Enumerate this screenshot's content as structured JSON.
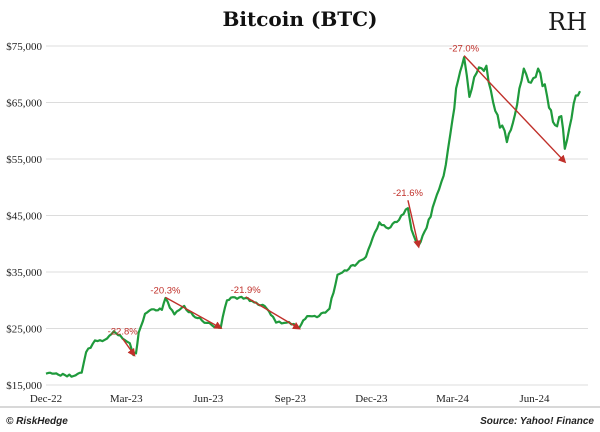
{
  "footer": {
    "left": "© RiskHedge",
    "right": "Source: Yahoo! Finance"
  },
  "logo": {
    "text": "RH"
  },
  "colors": {
    "line": "#1f9a3c",
    "arrow": "#c0302a",
    "grid": "#dcdcdc"
  },
  "chart_data": {
    "type": "line",
    "title": "Bitcoin (BTC)",
    "yticks": [
      15000,
      25000,
      35000,
      45000,
      55000,
      65000,
      75000
    ],
    "ytick_labels": [
      "$15,000",
      "$25,000",
      "$35,000",
      "$45,000",
      "$55,000",
      "$65,000",
      "$75,000"
    ],
    "ylim": [
      15000,
      75000
    ],
    "xlim": [
      "2022-12-01",
      "2024-07-31"
    ],
    "xticks": [
      "2022-12-01",
      "2023-03-01",
      "2023-06-01",
      "2023-09-01",
      "2023-12-01",
      "2024-03-01",
      "2024-06-01"
    ],
    "xtick_labels": [
      "Dec-22",
      "Mar-23",
      "Jun-23",
      "Sep-23",
      "Dec-23",
      "Mar-24",
      "Jun-24"
    ],
    "grid": "horizontal",
    "series": [
      {
        "x": [
          "2022-12-01",
          "2022-12-15",
          "2023-01-01",
          "2023-01-10",
          "2023-01-15",
          "2023-01-25",
          "2023-02-05",
          "2023-02-15",
          "2023-02-25",
          "2023-03-05",
          "2023-03-09",
          "2023-03-12",
          "2023-03-15",
          "2023-03-22",
          "2023-04-01",
          "2023-04-10",
          "2023-04-14",
          "2023-04-24",
          "2023-05-05",
          "2023-05-15",
          "2023-05-25",
          "2023-06-05",
          "2023-06-15",
          "2023-06-22",
          "2023-07-01",
          "2023-07-13",
          "2023-07-20",
          "2023-08-01",
          "2023-08-15",
          "2023-08-17",
          "2023-08-25",
          "2023-09-05",
          "2023-09-11",
          "2023-09-20",
          "2023-10-01",
          "2023-10-15",
          "2023-10-24",
          "2023-11-01",
          "2023-11-15",
          "2023-11-25",
          "2023-12-05",
          "2023-12-10",
          "2023-12-20",
          "2024-01-01",
          "2024-01-11",
          "2024-01-15",
          "2024-01-23",
          "2024-02-01",
          "2024-02-10",
          "2024-02-20",
          "2024-03-01",
          "2024-03-05",
          "2024-03-14",
          "2024-03-20",
          "2024-03-28",
          "2024-04-08",
          "2024-04-18",
          "2024-05-01",
          "2024-05-10",
          "2024-05-20",
          "2024-05-28",
          "2024-06-05",
          "2024-06-15",
          "2024-06-24",
          "2024-07-01",
          "2024-07-05",
          "2024-07-15",
          "2024-07-22"
        ],
        "values": [
          17000,
          16800,
          16600,
          17200,
          20800,
          22900,
          23000,
          24500,
          23200,
          22400,
          20300,
          20600,
          24300,
          27600,
          28400,
          28300,
          30400,
          27500,
          29000,
          27300,
          26400,
          25600,
          25100,
          30000,
          30500,
          30400,
          29900,
          29200,
          26400,
          26100,
          26000,
          25800,
          25100,
          27200,
          27000,
          28500,
          34500,
          35300,
          36500,
          37700,
          42000,
          43800,
          42700,
          44200,
          46300,
          42500,
          39700,
          42800,
          47500,
          52000,
          62000,
          67500,
          73000,
          66000,
          70200,
          71500,
          63500,
          58000,
          62800,
          71000,
          68500,
          71000,
          66200,
          61000,
          62600,
          56800,
          64800,
          67000
        ]
      }
    ],
    "annotations": [
      {
        "label": "-22.8%",
        "from": [
          "2023-02-25",
          23200
        ],
        "to": [
          "2023-03-10",
          20300
        ]
      },
      {
        "label": "-20.3%",
        "from": [
          "2023-04-14",
          30500
        ],
        "to": [
          "2023-06-15",
          25100
        ]
      },
      {
        "label": "-21.9%",
        "from": [
          "2023-07-13",
          30600
        ],
        "to": [
          "2023-09-11",
          25000
        ]
      },
      {
        "label": "-21.6%",
        "from": [
          "2024-01-11",
          47700
        ],
        "to": [
          "2024-01-23",
          39500
        ]
      },
      {
        "label": "-27.0%",
        "from": [
          "2024-03-14",
          73300
        ],
        "to": [
          "2024-07-05",
          54500
        ]
      }
    ]
  }
}
